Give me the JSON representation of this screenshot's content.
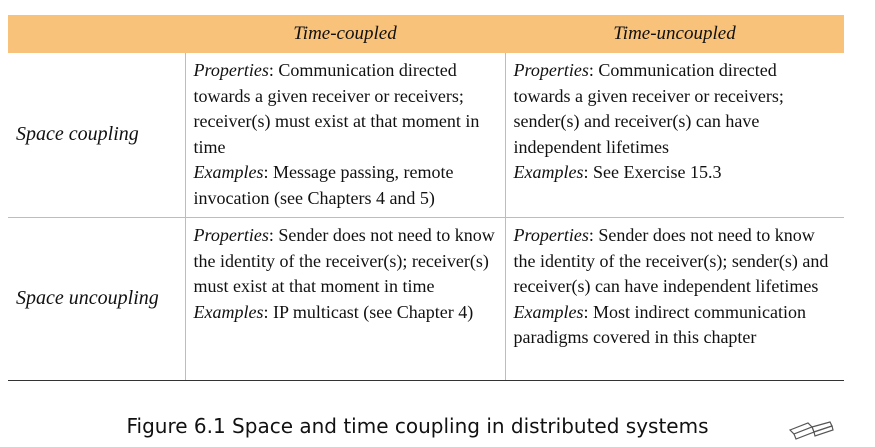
{
  "table": {
    "headers": [
      "",
      "Time-coupled",
      "Time-uncoupled"
    ],
    "rows": [
      {
        "label": "Space coupling",
        "coupled": {
          "properties_label": "Properties",
          "properties": ": Communication directed towards a given receiver or receivers; receiver(s) must exist at that moment in time",
          "examples_label": "Examples",
          "examples": ": Message passing, remote invocation (see Chapters 4 and 5)"
        },
        "uncoupled": {
          "properties_label": "Properties",
          "properties": ": Communication directed towards a given receiver or receivers; sender(s) and receiver(s) can have independent lifetimes",
          "examples_label": "Examples",
          "examples": ": See Exercise 15.3"
        }
      },
      {
        "label": "Space uncoupling",
        "coupled": {
          "properties_label": "Properties",
          "properties": ": Sender does not need to know the identity of the receiver(s); receiver(s) must exist at that moment in time",
          "examples_label": "Examples",
          "examples": ": IP multicast (see Chapter 4)"
        },
        "uncoupled": {
          "properties_label": "Properties",
          "properties": ": Sender does not need to know the identity of the receiver(s); sender(s) and receiver(s) can have independent lifetimes",
          "examples_label": "Examples",
          "examples": ": Most indirect communication paradigms covered in this chapter"
        }
      }
    ],
    "colors": {
      "header_bg": "#f8c27a",
      "grid": "#bdbdbd"
    }
  },
  "caption": "Figure 6.1 Space and time coupling in distributed systems",
  "icons": {
    "corner": "book-icon"
  }
}
